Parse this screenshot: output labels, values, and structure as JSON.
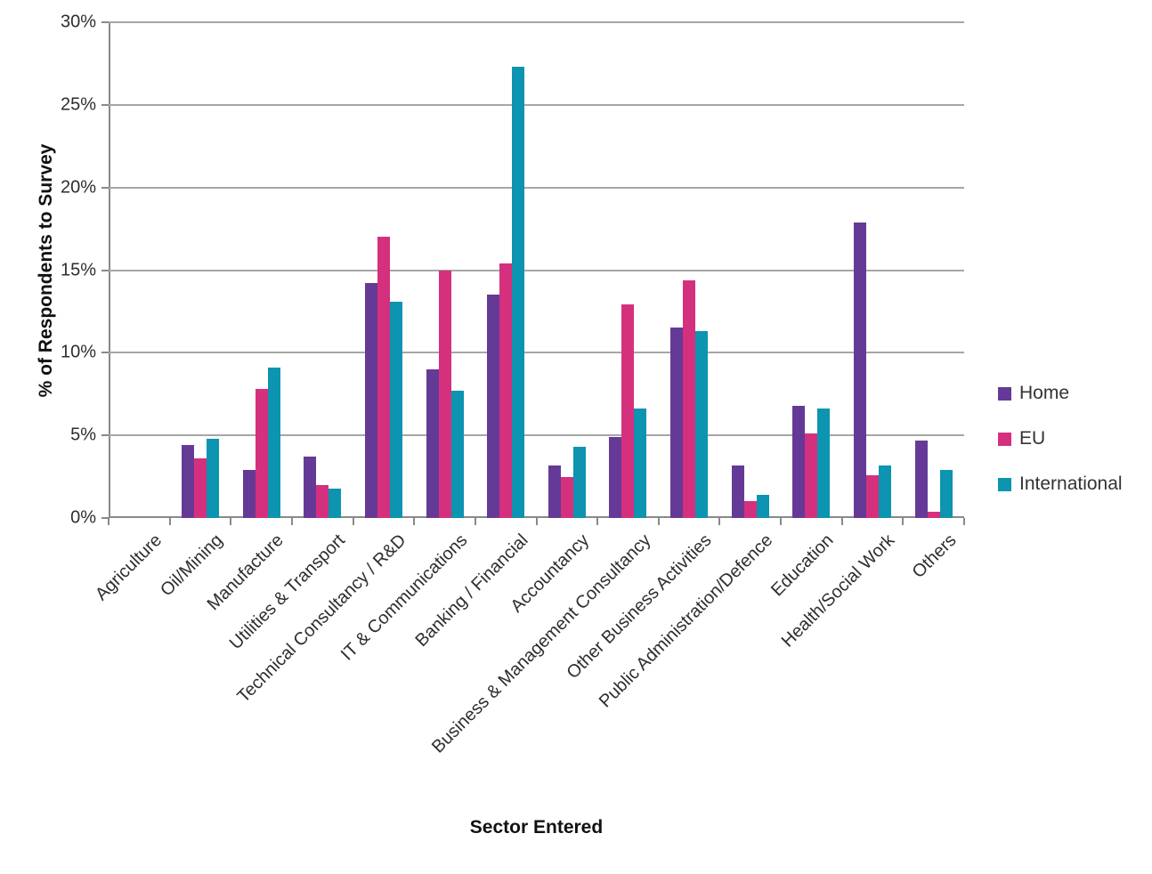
{
  "chart_data": {
    "type": "bar",
    "title": "",
    "xlabel": "Sector Entered",
    "ylabel": "% of Respondents to Survey",
    "ylim": [
      0,
      30
    ],
    "ytick_step": 5,
    "ytick_labels": [
      "0%",
      "5%",
      "10%",
      "15%",
      "20%",
      "25%",
      "30%"
    ],
    "grid": true,
    "legend_position": "right",
    "categories": [
      "Agriculture",
      "Oil/Mining",
      "Manufacture",
      "Utilities & Transport",
      "Technical Consultancy / R&D",
      "IT & Communications",
      "Banking / Financial",
      "Accountancy",
      "Business & Management Consultancy",
      "Other Business Activities",
      "Public Administration/Defence",
      "Education",
      "Health/Social Work",
      "Others"
    ],
    "series": [
      {
        "name": "Home",
        "color": "#653a96",
        "values": [
          0,
          4.4,
          2.9,
          3.7,
          14.2,
          9.0,
          13.5,
          3.2,
          4.9,
          11.5,
          3.2,
          6.8,
          17.9,
          4.7
        ]
      },
      {
        "name": "EU",
        "color": "#d5307d",
        "values": [
          0,
          3.6,
          7.8,
          2.0,
          17.0,
          15.0,
          15.4,
          2.5,
          12.9,
          14.4,
          1.0,
          5.1,
          2.6,
          0.4
        ]
      },
      {
        "name": "International",
        "color": "#0d94b0",
        "values": [
          0,
          4.8,
          9.1,
          1.8,
          13.1,
          7.7,
          27.3,
          4.3,
          6.6,
          11.3,
          1.4,
          6.6,
          3.2,
          2.9
        ]
      }
    ]
  },
  "style_colors": {
    "gridline": "#a6a6a6",
    "axis_line": "#898989",
    "tick_text": "#2e2e2e",
    "title_text": "#111111"
  }
}
